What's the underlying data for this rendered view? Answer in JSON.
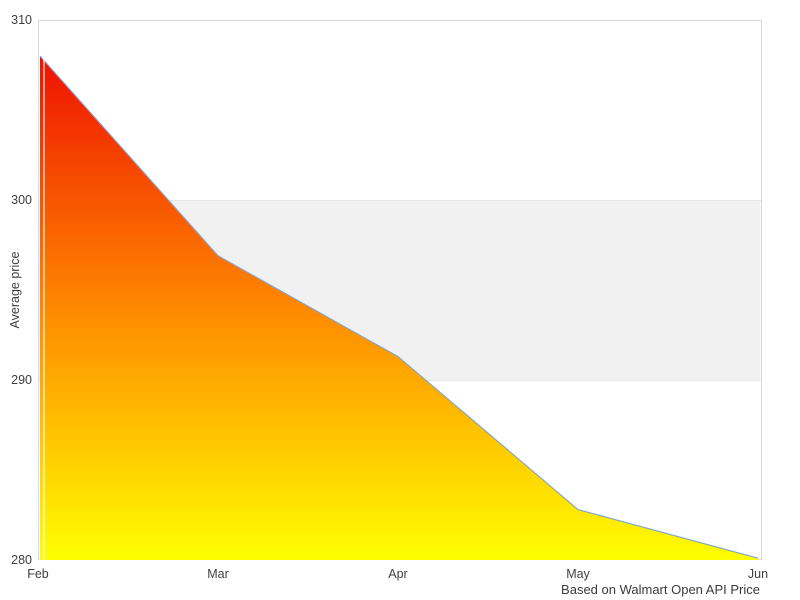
{
  "chart_data": {
    "type": "area",
    "x": [
      "Feb",
      "Mar",
      "Apr",
      "May",
      "Jun"
    ],
    "values": [
      308,
      296.9,
      291.3,
      282.8,
      280.1
    ],
    "series_name": "Average price",
    "ylabel": "Average price",
    "xlabel": "",
    "ylim": [
      280,
      310
    ],
    "y_ticks": [
      310,
      300,
      290,
      280
    ],
    "band": {
      "from": 290,
      "to": 300
    },
    "caption": "Based on Walmart Open API Price",
    "legend": "none",
    "grid": "horizontal shaded band between 290 and 300",
    "colors": {
      "gradient_top": "#ee1100",
      "gradient_mid": "#ff8800",
      "gradient_bottom": "#ffff00",
      "line": "#7da7d8",
      "band_fill": "#f1f1f1",
      "band_edge": "#e6e6e6",
      "plot_border": "#d9d9d9",
      "text": "#3f3f3f",
      "background": "#ffffff"
    }
  }
}
